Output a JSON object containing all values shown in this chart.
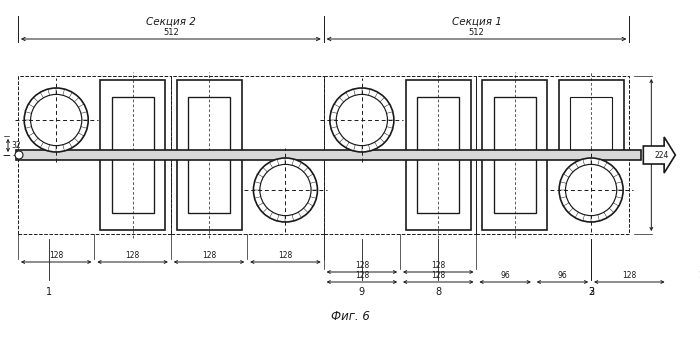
{
  "fig_width": 7.0,
  "fig_height": 3.37,
  "dpi": 100,
  "bg_color": "#ffffff",
  "line_color": "#1a1a1a",
  "title": "Фиг. 6",
  "section1_label": "Секция 1",
  "section2_label": "Секция 2",
  "dim_512": "512",
  "dim_128": "128",
  "dim_96": "96",
  "dim_32": "32",
  "dim_224": "224"
}
